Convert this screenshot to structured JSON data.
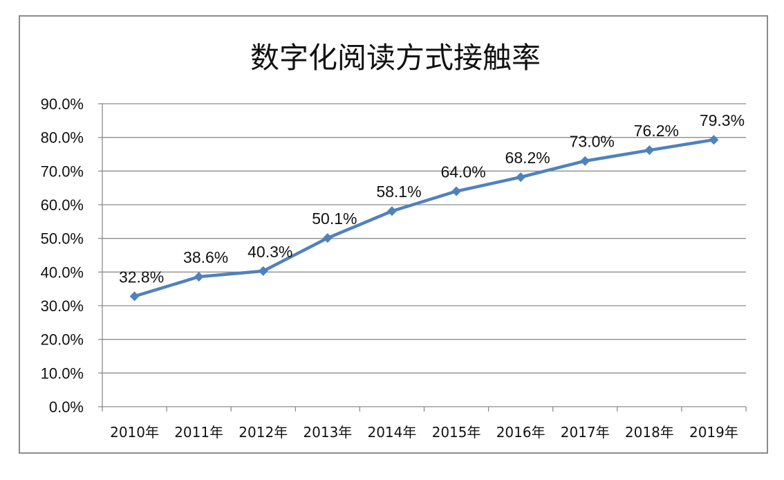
{
  "chart_data": {
    "type": "line",
    "title": "数字化阅读方式接触率",
    "xlabel": "",
    "ylabel": "",
    "categories": [
      "2010年",
      "2011年",
      "2012年",
      "2013年",
      "2014年",
      "2015年",
      "2016年",
      "2017年",
      "2018年",
      "2019年"
    ],
    "series": [
      {
        "values": [
          32.8,
          38.6,
          40.3,
          50.1,
          58.1,
          64.0,
          68.2,
          73.0,
          76.2,
          79.3
        ],
        "data_labels": [
          "32.8%",
          "38.6%",
          "40.3%",
          "50.1%",
          "58.1%",
          "64.0%",
          "68.2%",
          "73.0%",
          "76.2%",
          "79.3%"
        ],
        "color": "#4f81bd",
        "marker": "diamond"
      }
    ],
    "ylim": [
      0,
      90
    ],
    "yticks": [
      "0.0%",
      "10.0%",
      "20.0%",
      "30.0%",
      "40.0%",
      "50.0%",
      "60.0%",
      "70.0%",
      "80.0%",
      "90.0%"
    ],
    "grid": true,
    "legend": "none"
  }
}
